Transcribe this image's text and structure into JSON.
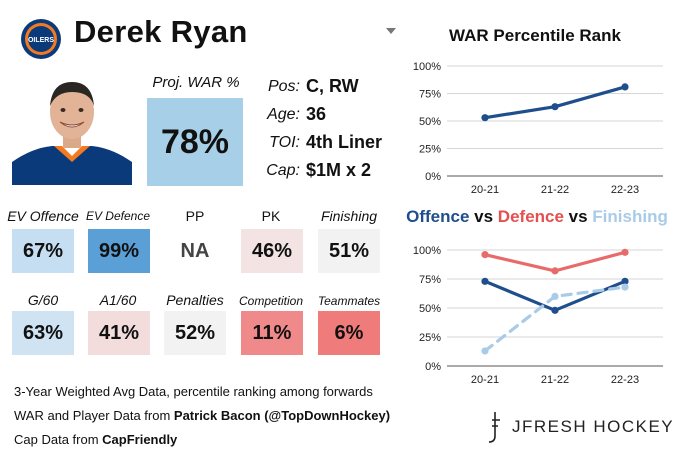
{
  "header": {
    "name": "Derek Ryan",
    "team_logo_text": "OILERS"
  },
  "projected": {
    "label": "Proj. WAR %",
    "value": "78%"
  },
  "info": [
    {
      "label": "Pos:",
      "value": "C, RW"
    },
    {
      "label": "Age:",
      "value": "36"
    },
    {
      "label": "TOI:",
      "value": "4th Liner"
    },
    {
      "label": "Cap:",
      "value": "$1M x 2"
    }
  ],
  "stats": [
    {
      "label": "EV Offence",
      "value": "67%",
      "color": "#c6def1"
    },
    {
      "label": "EV Defence",
      "value": "99%",
      "color": "#5a9fd6"
    },
    {
      "label": "PP",
      "value": "NA",
      "color": "#ffffff"
    },
    {
      "label": "PK",
      "value": "46%",
      "color": "#f4e3e3"
    },
    {
      "label": "Finishing",
      "value": "51%",
      "color": "#f2f2f2"
    },
    {
      "label": "G/60",
      "value": "63%",
      "color": "#cfe3f3"
    },
    {
      "label": "A1/60",
      "value": "41%",
      "color": "#f3dcdc"
    },
    {
      "label": "Penalties",
      "value": "52%",
      "color": "#f2f2f2"
    },
    {
      "label": "Competition",
      "value": "11%",
      "color": "#f08a8a"
    },
    {
      "label": "Teammates",
      "value": "6%",
      "color": "#ef7b7b"
    }
  ],
  "footer": {
    "line1": "3-Year Weighted Avg Data, percentile ranking among forwards",
    "line2_prefix": "WAR and Player Data from ",
    "line2_bold": "Patrick Bacon (@TopDownHockey)",
    "line3_prefix": "Cap Data from ",
    "line3_bold": "CapFriendly"
  },
  "brand": {
    "text": "JFRESH HOCKEY"
  },
  "chart_data": [
    {
      "type": "line",
      "title": "WAR Percentile Rank",
      "x": [
        "20-21",
        "21-22",
        "22-23"
      ],
      "yticks": [
        "0%",
        "25%",
        "50%",
        "75%",
        "100%"
      ],
      "ylim": [
        0,
        100
      ],
      "grid": true,
      "series": [
        {
          "values": [
            53,
            63,
            81
          ],
          "color": "#1f4e8c",
          "dashed": false
        }
      ]
    },
    {
      "type": "line",
      "title_parts": [
        {
          "text": "Offence",
          "color": "#1f4e8c"
        },
        {
          "text": " vs ",
          "color": "#111111"
        },
        {
          "text": "Defence",
          "color": "#e3504f"
        },
        {
          "text": " vs ",
          "color": "#111111"
        },
        {
          "text": "Finishing",
          "color": "#a9cbe8"
        }
      ],
      "x": [
        "20-21",
        "21-22",
        "22-23"
      ],
      "yticks": [
        "0%",
        "25%",
        "50%",
        "75%",
        "100%"
      ],
      "ylim": [
        0,
        100
      ],
      "grid": true,
      "series": [
        {
          "values": [
            96,
            82,
            98
          ],
          "color": "#e86a6a",
          "dashed": false
        },
        {
          "values": [
            73,
            48,
            73
          ],
          "color": "#1f4e8c",
          "dashed": false
        },
        {
          "values": [
            13,
            60,
            68
          ],
          "color": "#a9cbe8",
          "dashed": true
        }
      ]
    }
  ]
}
